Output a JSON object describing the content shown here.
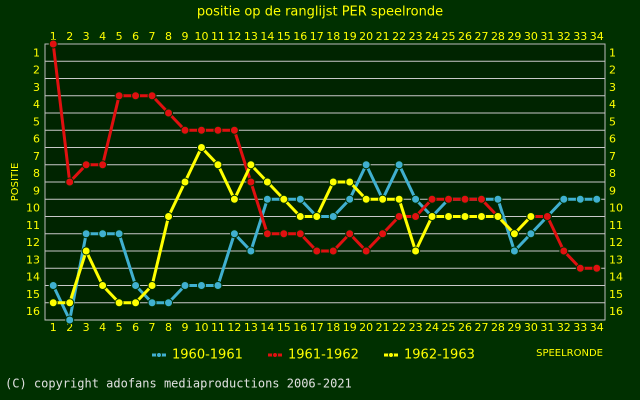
{
  "chart_data": {
    "type": "line",
    "title": "positie op de ranglijst PER speelronde",
    "x_label": "SPEELRONDE",
    "y_label": "POSITIE",
    "footer": "(C) copyright adofans mediaproductions 2006-2021",
    "x": [
      1,
      2,
      3,
      4,
      5,
      6,
      7,
      8,
      9,
      10,
      11,
      12,
      13,
      14,
      15,
      16,
      17,
      18,
      19,
      20,
      21,
      22,
      23,
      24,
      25,
      26,
      27,
      28,
      29,
      30,
      31,
      32,
      33,
      34
    ],
    "xlim": [
      0.5,
      34.5
    ],
    "ylim": [
      16,
      0
    ],
    "yticks": [
      1,
      2,
      3,
      4,
      5,
      6,
      7,
      8,
      9,
      10,
      11,
      12,
      13,
      14,
      15,
      16
    ],
    "grid": true,
    "series": [
      {
        "name": "1960-1961",
        "color": "#40b0d0",
        "values": [
          14,
          16,
          11,
          11,
          11,
          14,
          15,
          15,
          14,
          14,
          14,
          11,
          12,
          9,
          9,
          9,
          10,
          10,
          9,
          7,
          9,
          7,
          9,
          10,
          9,
          9,
          9,
          9,
          12,
          11,
          10,
          9,
          9,
          9
        ]
      },
      {
        "name": "1961-1962",
        "color": "#e01010",
        "values": [
          0,
          8,
          7,
          7,
          3,
          3,
          3,
          4,
          5,
          5,
          5,
          5,
          8,
          11,
          11,
          11,
          12,
          12,
          11,
          12,
          11,
          10,
          10,
          9,
          9,
          9,
          9,
          10,
          11,
          10,
          10,
          12,
          13,
          13
        ]
      },
      {
        "name": "1962-1963",
        "color": "#ffff00",
        "values": [
          15,
          15,
          12,
          14,
          15,
          15,
          14,
          10,
          8,
          6,
          7,
          9,
          7,
          8,
          9,
          10,
          10,
          8,
          8,
          9,
          9,
          9,
          12,
          10,
          10,
          10,
          10,
          10,
          11,
          10,
          null,
          null,
          null,
          null
        ]
      }
    ]
  }
}
